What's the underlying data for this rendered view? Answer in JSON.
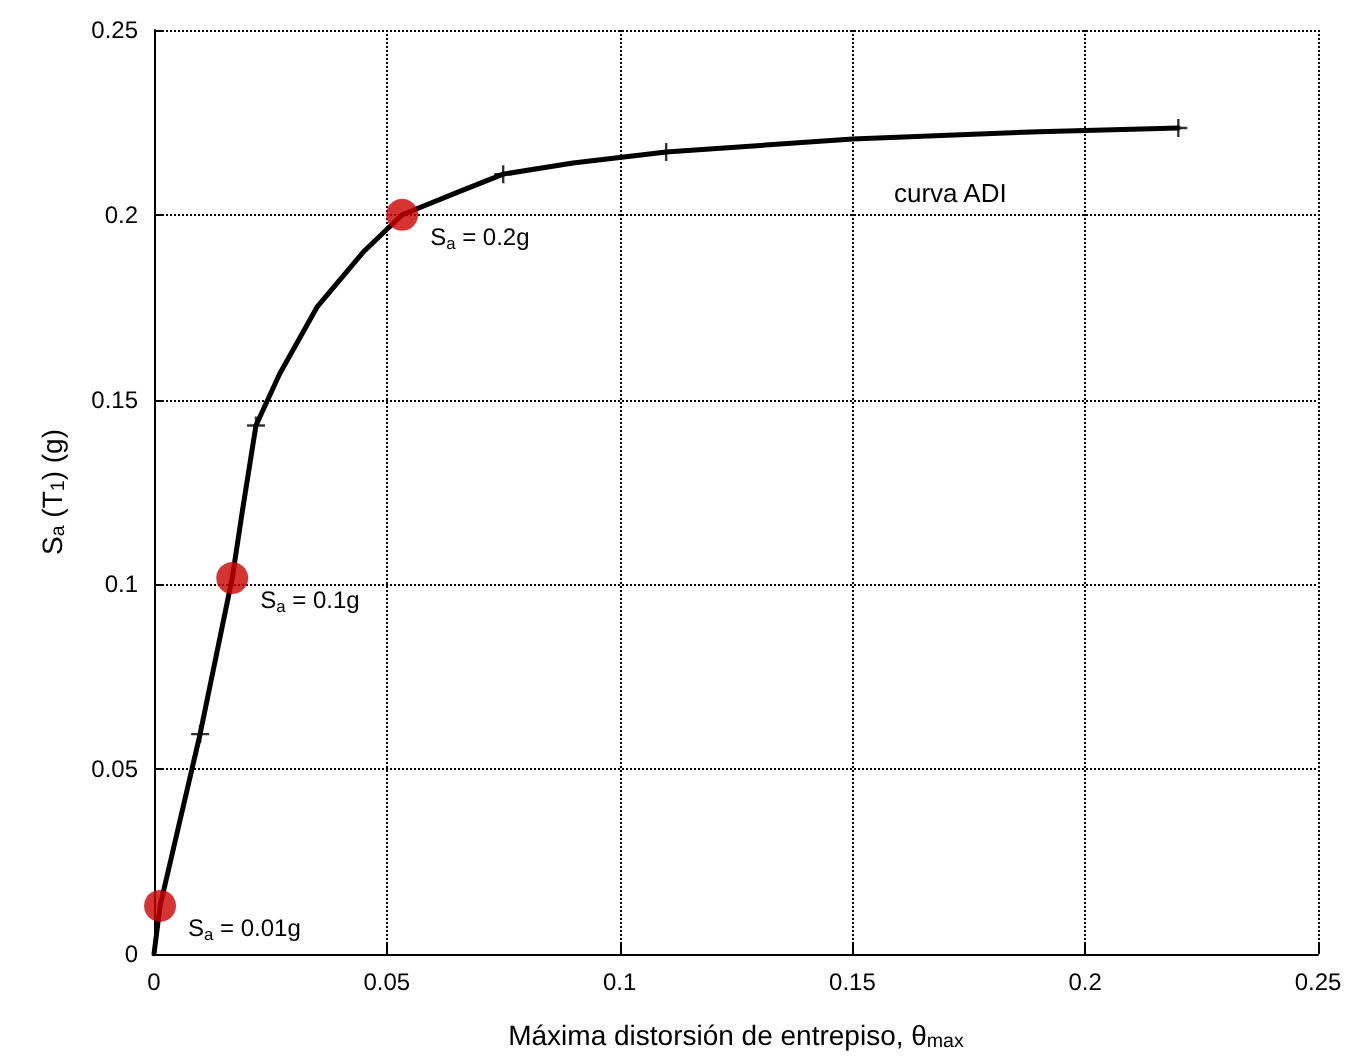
{
  "chart_data": {
    "type": "line",
    "xlabel": "Máxima distorsión de entrepiso, θ$_{max}$",
    "ylabel": "S$_{a}$ (T$_{1}$) (g)",
    "xlim": [
      0,
      0.25
    ],
    "xticks": [
      0,
      0.05,
      0.1,
      0.15,
      0.2,
      0.25
    ],
    "ylim": [
      0,
      0.25
    ],
    "yticks": [
      0,
      0.05,
      0.1,
      0.15,
      0.2,
      0.25
    ],
    "grid": true,
    "series": [
      {
        "color": "#000000",
        "marker": "none",
        "x": [
          0,
          0.0013,
          0.0099,
          0.0168,
          0.019,
          0.0219,
          0.027,
          0.035,
          0.045,
          0.0533,
          0.065,
          0.075,
          0.09,
          0.11,
          0.15,
          0.19,
          0.22
        ],
        "values": [
          0,
          0.013,
          0.0595,
          0.1017,
          0.12,
          0.143,
          0.157,
          0.175,
          0.19,
          0.2,
          0.206,
          0.211,
          0.214,
          0.217,
          0.2205,
          0.2225,
          0.2235
        ]
      },
      {
        "type": "scatter",
        "color": "#000000",
        "marker": "cross",
        "x": [
          0.0099,
          0.0219,
          0.075,
          0.11,
          0.22
        ],
        "values": [
          0.0595,
          0.143,
          0.211,
          0.217,
          0.2235
        ]
      },
      {
        "type": "scatter",
        "color": "#cc0000",
        "marker": "circle",
        "x": [
          0.0013,
          0.0168,
          0.0533
        ],
        "values": [
          0.013,
          0.1017,
          0.2
        ]
      }
    ],
    "annotations": [
      {
        "text": "S$_{a}$ = 0.01g",
        "x": 0.0013,
        "y": 0.013
      },
      {
        "text": "S$_{a}$ = 0.1g",
        "x": 0.0168,
        "y": 0.1017
      },
      {
        "text": "S$_{a}$ = 0.2g",
        "x": 0.0533,
        "y": 0.2
      },
      "curva ADI"
    ]
  }
}
